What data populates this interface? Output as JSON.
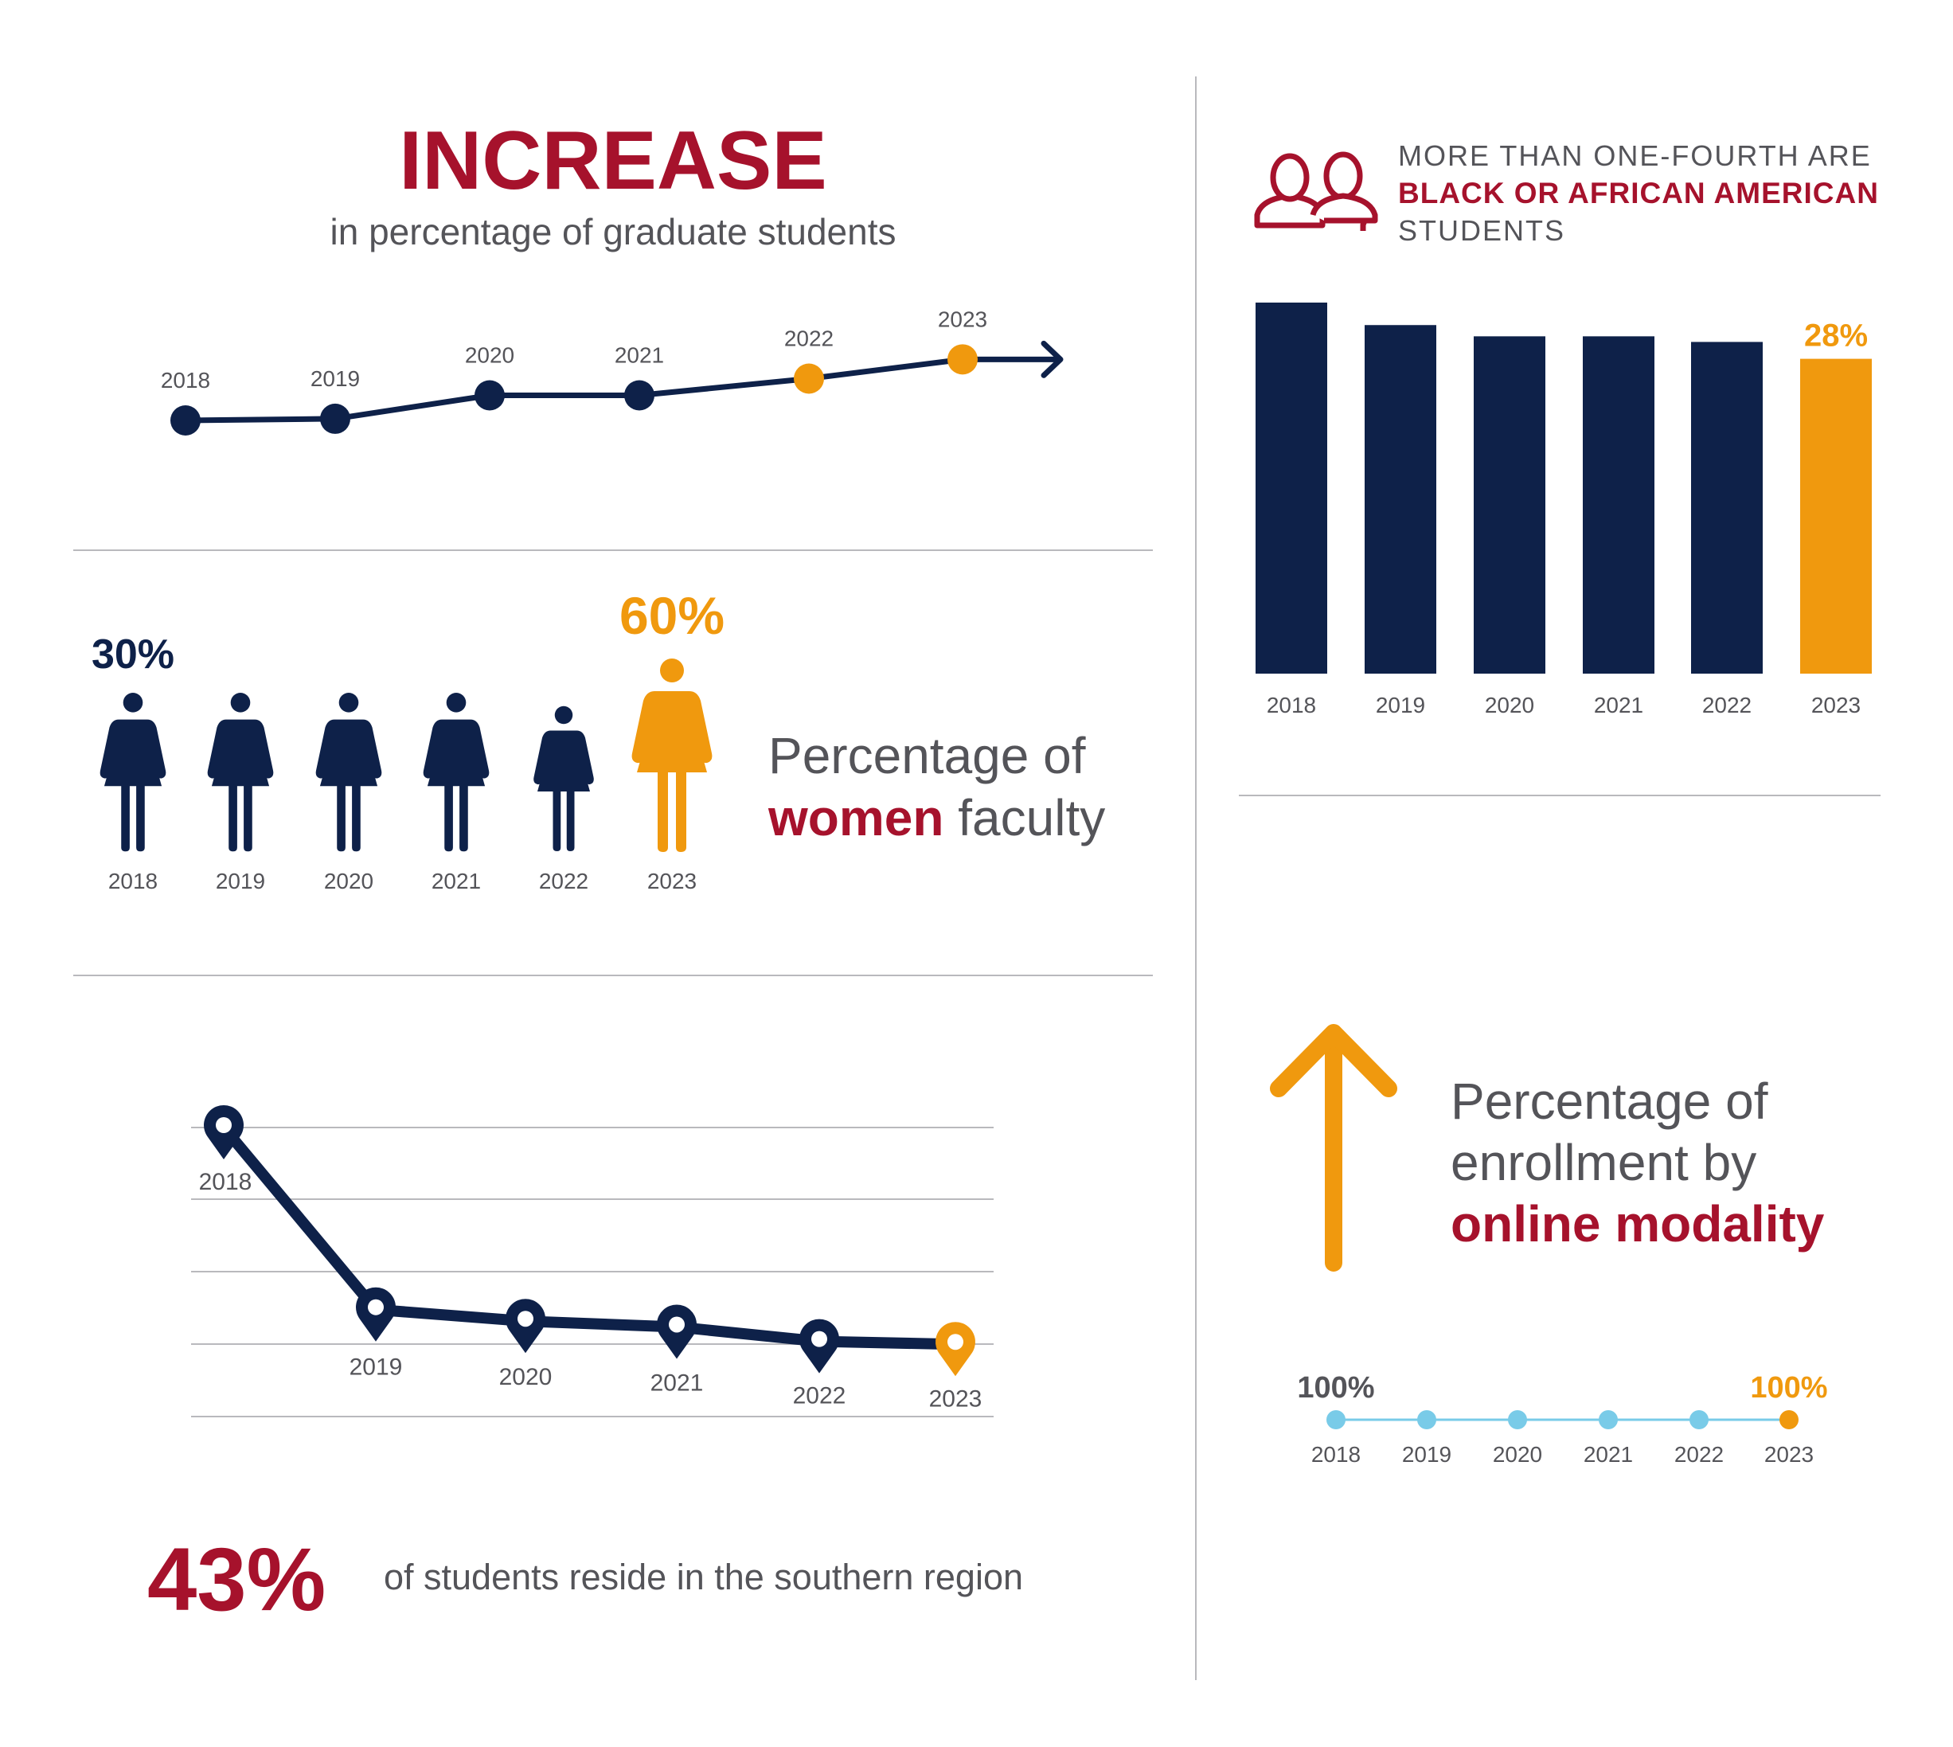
{
  "colors": {
    "navy": "#0e2149",
    "red": "#a6122c",
    "orange": "#f0990e",
    "gray_text": "#545459",
    "light_blue": "#79cbe8",
    "rule": "#b9b9bd"
  },
  "grad": {
    "title": "INCREASE",
    "subtitle": "in percentage of graduate students"
  },
  "women": {
    "first_value": "30%",
    "last_value": "60%",
    "label_line1": "Percentage of",
    "label_bold": "women",
    "label_rest": " faculty"
  },
  "south": {
    "big_value": "43%",
    "caption": "of students reside in the southern region"
  },
  "black": {
    "line1": "MORE THAN ONE-FOURTH ARE",
    "line2": "BLACK OR AFRICAN AMERICAN",
    "line3": "STUDENTS",
    "icon": "people-icon"
  },
  "online": {
    "line1": "Percentage of",
    "line2": "enrollment by",
    "line3": "online modality",
    "first_value": "100%",
    "last_value": "100%",
    "icon": "up-arrow-icon"
  },
  "chart_data": [
    {
      "id": "graduate-line",
      "type": "line",
      "x": [
        "2018",
        "2019",
        "2020",
        "2021",
        "2022",
        "2023"
      ],
      "values": [
        0.0,
        0.02,
        0.3,
        0.3,
        0.5,
        0.73
      ],
      "ylim": [
        0,
        1
      ],
      "highlight": [
        "2022",
        "2023"
      ]
    },
    {
      "id": "women-faculty",
      "type": "bar",
      "categories": [
        "2018",
        "2019",
        "2020",
        "2021",
        "2022",
        "2023"
      ],
      "values": [
        30,
        30,
        30,
        30,
        45,
        60
      ],
      "labels": {
        "2018": "30%",
        "2023": "60%"
      },
      "unit": "%"
    },
    {
      "id": "southern-region",
      "type": "line",
      "x": [
        "2018",
        "2019",
        "2020",
        "2021",
        "2022",
        "2023"
      ],
      "values": [
        100,
        37,
        33,
        31,
        26,
        25
      ],
      "ylim": [
        0,
        100
      ],
      "highlight": [
        "2023"
      ]
    },
    {
      "id": "black-students",
      "type": "bar",
      "categories": [
        "2018",
        "2019",
        "2020",
        "2021",
        "2022",
        "2023"
      ],
      "values": [
        33,
        31,
        30,
        30,
        29.5,
        28
      ],
      "ylim": [
        0,
        33
      ],
      "labels": {
        "2023": "28%"
      },
      "highlight": [
        "2023"
      ]
    },
    {
      "id": "online-modality",
      "type": "line",
      "x": [
        "2018",
        "2019",
        "2020",
        "2021",
        "2022",
        "2023"
      ],
      "values": [
        100,
        100,
        100,
        100,
        100,
        100
      ],
      "labels": {
        "2018": "100%",
        "2023": "100%"
      },
      "highlight": [
        "2023"
      ]
    }
  ]
}
